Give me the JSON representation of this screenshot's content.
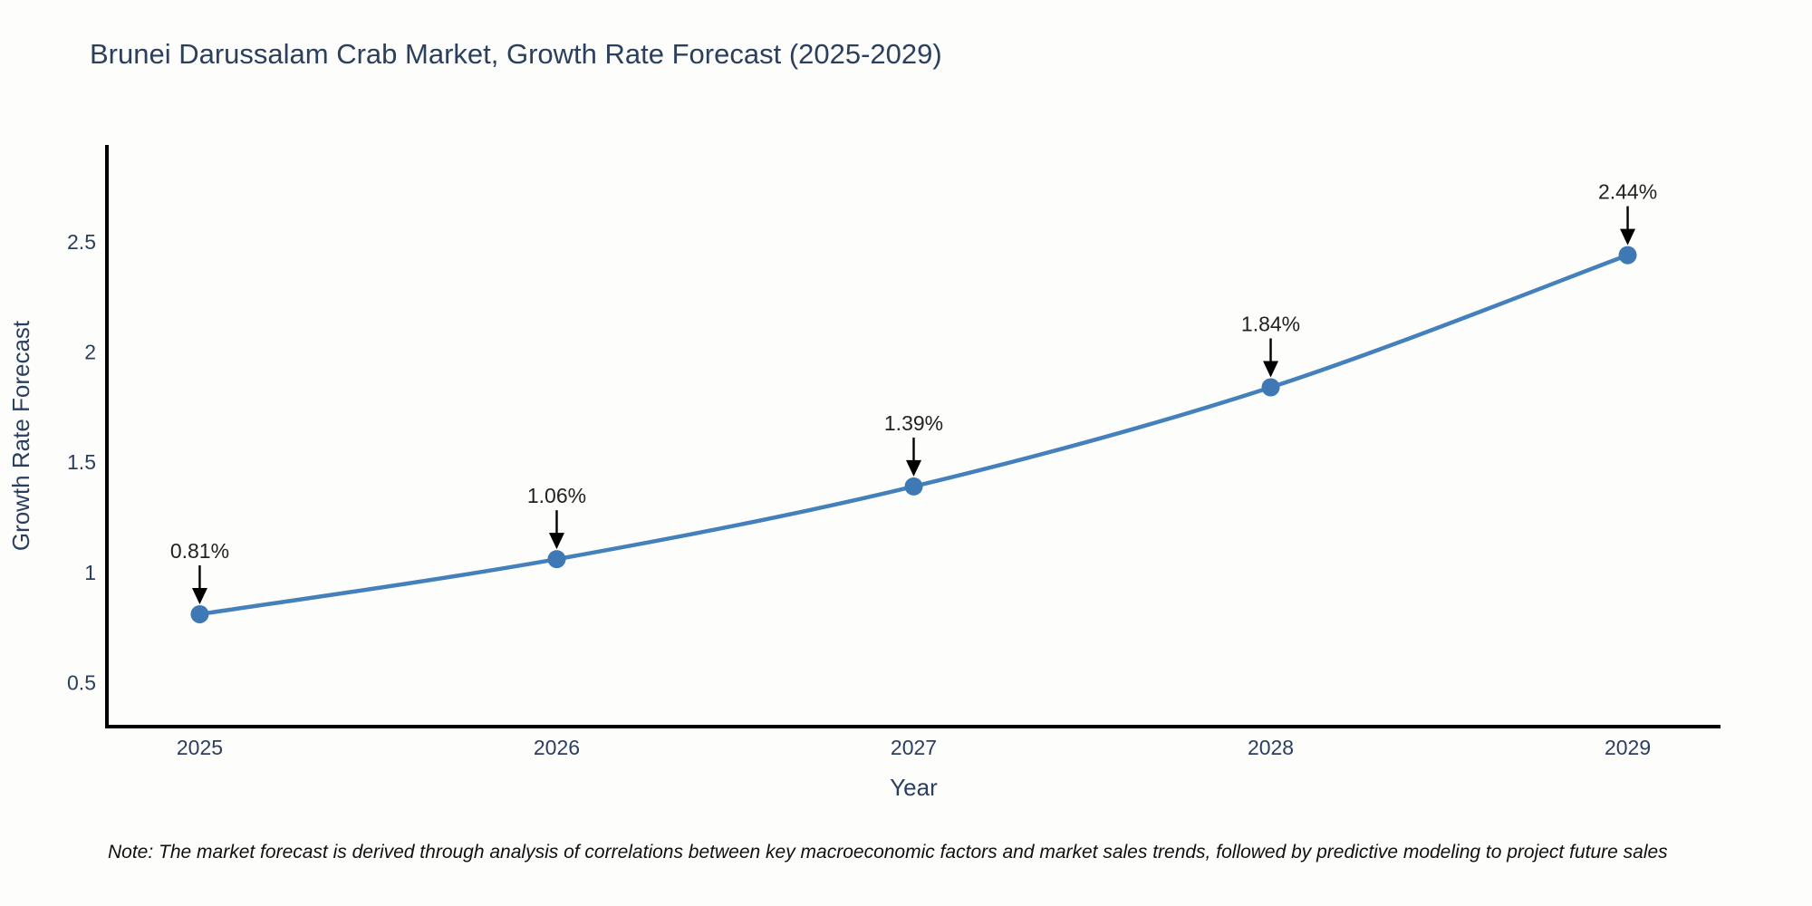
{
  "title": "Brunei Darussalam Crab Market, Growth Rate Forecast (2025-2029)",
  "note": "Note: The market forecast is derived through analysis of correlations between key macroeconomic factors and market sales trends, followed by predictive modeling to project future sales",
  "chart_data": {
    "type": "line",
    "title": "Brunei Darussalam Crab Market, Growth Rate Forecast (2025-2029)",
    "xlabel": "Year",
    "ylabel": "Growth Rate Forecast",
    "x": [
      2025,
      2026,
      2027,
      2028,
      2029
    ],
    "series": [
      {
        "name": "Growth Rate Forecast",
        "values": [
          0.81,
          1.06,
          1.39,
          1.84,
          2.44
        ]
      }
    ],
    "point_labels": [
      "0.81%",
      "1.06%",
      "1.39%",
      "1.84%",
      "2.44%"
    ],
    "x_tick_labels": [
      "2025",
      "2026",
      "2027",
      "2028",
      "2029"
    ],
    "y_ticks": [
      0.5,
      1,
      1.5,
      2,
      2.5
    ],
    "y_tick_labels": [
      "0.5",
      "1",
      "1.5",
      "2",
      "2.5"
    ],
    "xlim": [
      2024.74,
      2029.26
    ],
    "ylim": [
      0.3,
      2.94
    ],
    "grid": false,
    "legend_position": "none",
    "annotation_style": "down-arrow-to-point",
    "colors": {
      "line": "#4480bb",
      "marker": "#3e79b6",
      "axis_line": "#000000",
      "tick_label": "#2a3f5f",
      "axis_title": "#2a3f5f",
      "annotation_text": "#222222",
      "annotation_arrow": "#000000",
      "background": "#fdfdfb",
      "title_text": "#2b3f5e"
    }
  }
}
